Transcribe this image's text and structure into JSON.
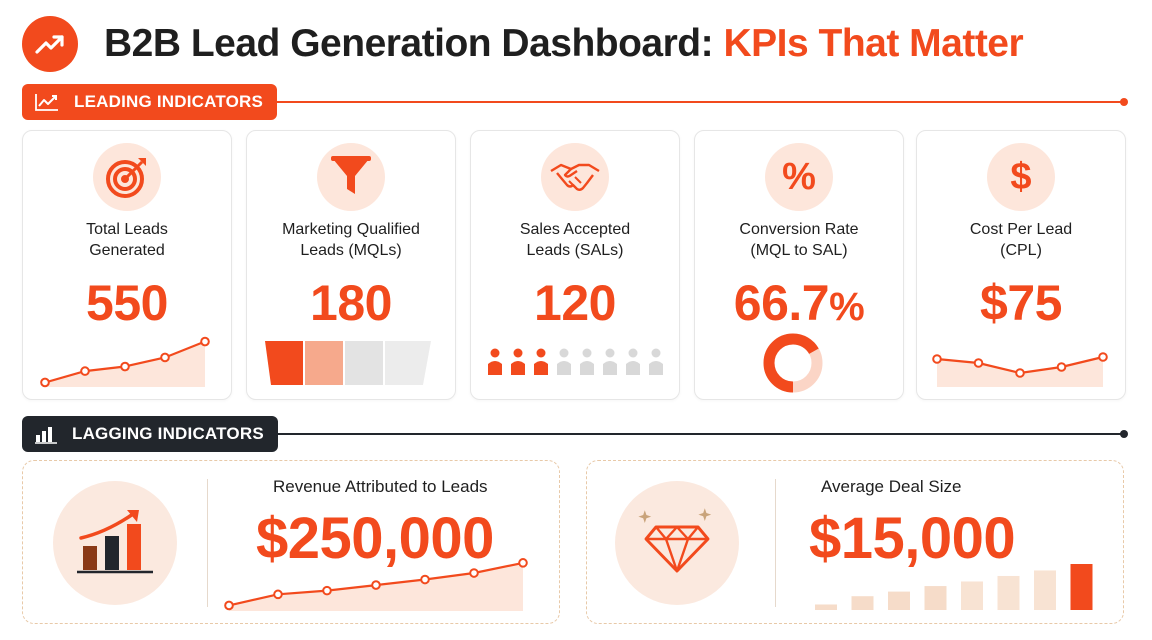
{
  "header": {
    "title_main": "B2B Lead Generation Dashboard: ",
    "title_accent": "KPIs That Matter",
    "logo_icon": "trending-up-icon"
  },
  "colors": {
    "accent": "#f24a1d",
    "dark": "#22262c",
    "soft": "#fde6db",
    "muted": "#e3e3e3"
  },
  "sections": {
    "leading": {
      "label": "LEADING INDICATORS",
      "icon": "line-chart-icon"
    },
    "lagging": {
      "label": "LAGGING INDICATORS",
      "icon": "bar-chart-icon"
    }
  },
  "kpis": [
    {
      "label_line1": "Total Leads",
      "label_line2": "Generated",
      "value": "550",
      "icon": "target-icon",
      "trend": [
        2,
        3,
        3.4,
        4.2,
        5.6
      ]
    },
    {
      "label_line1": "Marketing Qualified",
      "label_line2": "Leads (MQLs)",
      "value": "180",
      "icon": "funnel-icon",
      "segments_filled": 2,
      "segments_total": 4
    },
    {
      "label_line1": "Sales Accepted",
      "label_line2": "Leads (SALs)",
      "value": "120",
      "icon": "handshake-icon",
      "people_filled": 3,
      "people_total": 8
    },
    {
      "label_line1": "Conversion Rate",
      "label_line2": "(MQL to SAL)",
      "value_number": "66.7",
      "value_suffix": "%",
      "icon": "percent-icon",
      "progress": 0.667
    },
    {
      "label_line1": "Cost Per Lead",
      "label_line2": "(CPL)",
      "value": "$75",
      "icon": "dollar-icon",
      "trend": [
        5.2,
        4.8,
        3.8,
        4.4,
        5.4
      ]
    }
  ],
  "lagging": [
    {
      "label": "Revenue Attributed to Leads",
      "value": "$250,000",
      "icon": "growth-bar-chart-icon",
      "trend": [
        1,
        2.2,
        2.6,
        3.2,
        3.8,
        4.5,
        5.6
      ]
    },
    {
      "label": "Average Deal Size",
      "value": "$15,000",
      "icon": "diamond-icon",
      "bars": [
        0.12,
        0.3,
        0.4,
        0.52,
        0.62,
        0.74,
        0.86,
        1.0
      ]
    }
  ]
}
